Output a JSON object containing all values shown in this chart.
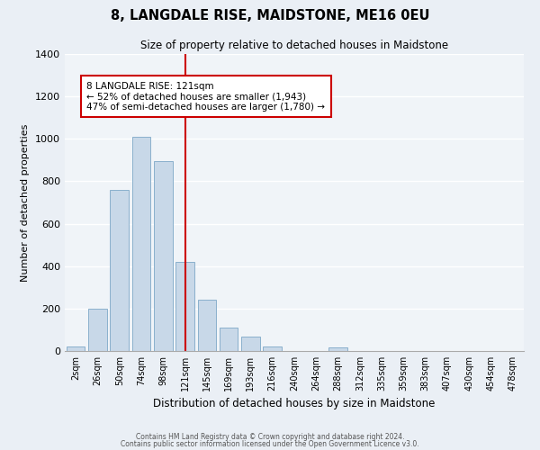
{
  "title": "8, LANGDALE RISE, MAIDSTONE, ME16 0EU",
  "subtitle": "Size of property relative to detached houses in Maidstone",
  "xlabel": "Distribution of detached houses by size in Maidstone",
  "ylabel": "Number of detached properties",
  "bar_labels": [
    "2sqm",
    "26sqm",
    "50sqm",
    "74sqm",
    "98sqm",
    "121sqm",
    "145sqm",
    "169sqm",
    "193sqm",
    "216sqm",
    "240sqm",
    "264sqm",
    "288sqm",
    "312sqm",
    "335sqm",
    "359sqm",
    "383sqm",
    "407sqm",
    "430sqm",
    "454sqm",
    "478sqm"
  ],
  "bar_heights": [
    20,
    200,
    760,
    1010,
    895,
    420,
    240,
    110,
    70,
    20,
    0,
    0,
    15,
    0,
    0,
    0,
    0,
    0,
    0,
    0,
    0
  ],
  "bar_color": "#c8d8e8",
  "bar_edge_color": "#8ab0cc",
  "property_line_x": 5,
  "annotation_title": "8 LANGDALE RISE: 121sqm",
  "annotation_line1": "← 52% of detached houses are smaller (1,943)",
  "annotation_line2": "47% of semi-detached houses are larger (1,780) →",
  "annotation_box_color": "#ffffff",
  "annotation_box_edge_color": "#cc0000",
  "vline_color": "#cc0000",
  "ylim": [
    0,
    1400
  ],
  "yticks": [
    0,
    200,
    400,
    600,
    800,
    1000,
    1200,
    1400
  ],
  "footer1": "Contains HM Land Registry data © Crown copyright and database right 2024.",
  "footer2": "Contains public sector information licensed under the Open Government Licence v3.0.",
  "bg_color": "#eaeff5",
  "plot_bg_color": "#f0f4f8",
  "grid_color": "#ffffff"
}
